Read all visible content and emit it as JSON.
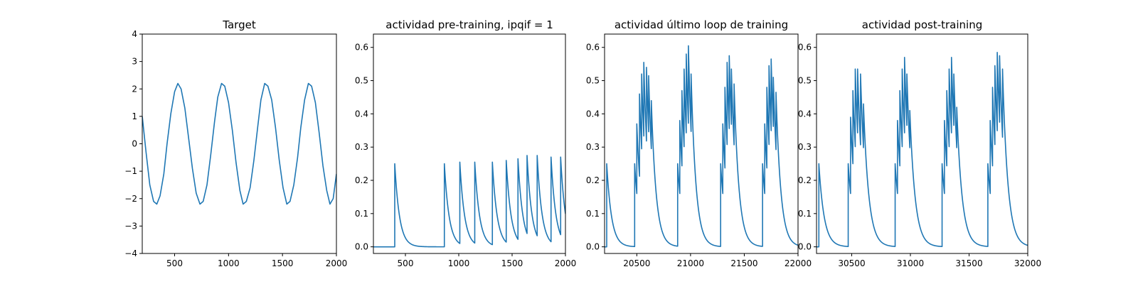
{
  "colors": {
    "line": "#1f77b4",
    "axes": "#000000",
    "background": "#ffffff"
  },
  "chart_data": [
    {
      "type": "line",
      "title": "Target",
      "xlim": [
        200,
        2000
      ],
      "ylim": [
        -4,
        4
      ],
      "xticks": [
        500,
        1000,
        1500,
        2000
      ],
      "yticks": [
        -4,
        -3,
        -2,
        -1,
        0,
        1,
        2,
        3,
        4
      ],
      "xticklabels": [
        "500",
        "1000",
        "1500",
        "2000"
      ],
      "yticklabels": [
        "−4",
        "−3",
        "−2",
        "−1",
        "0",
        "1",
        "2",
        "3",
        "4"
      ],
      "series": [
        {
          "points": [
            [
              200,
              1.0
            ],
            [
              235,
              -0.3
            ],
            [
              270,
              -1.5
            ],
            [
              305,
              -2.1
            ],
            [
              335,
              -2.2
            ],
            [
              365,
              -1.9
            ],
            [
              400,
              -1.1
            ],
            [
              430,
              0.0
            ],
            [
              465,
              1.1
            ],
            [
              500,
              1.9
            ],
            [
              530,
              2.2
            ],
            [
              560,
              2.0
            ],
            [
              595,
              1.3
            ],
            [
              630,
              0.2
            ],
            [
              665,
              -0.9
            ],
            [
              700,
              -1.8
            ],
            [
              735,
              -2.2
            ],
            [
              765,
              -2.1
            ],
            [
              800,
              -1.5
            ],
            [
              835,
              -0.4
            ],
            [
              870,
              0.8
            ],
            [
              900,
              1.7
            ],
            [
              935,
              2.2
            ],
            [
              965,
              2.1
            ],
            [
              1000,
              1.5
            ],
            [
              1035,
              0.5
            ],
            [
              1070,
              -0.7
            ],
            [
              1105,
              -1.7
            ],
            [
              1135,
              -2.2
            ],
            [
              1165,
              -2.1
            ],
            [
              1200,
              -1.6
            ],
            [
              1235,
              -0.6
            ],
            [
              1270,
              0.6
            ],
            [
              1300,
              1.6
            ],
            [
              1335,
              2.2
            ],
            [
              1365,
              2.1
            ],
            [
              1400,
              1.6
            ],
            [
              1435,
              0.6
            ],
            [
              1470,
              -0.6
            ],
            [
              1505,
              -1.6
            ],
            [
              1540,
              -2.2
            ],
            [
              1570,
              -2.1
            ],
            [
              1605,
              -1.5
            ],
            [
              1640,
              -0.5
            ],
            [
              1670,
              0.6
            ],
            [
              1705,
              1.6
            ],
            [
              1740,
              2.2
            ],
            [
              1770,
              2.1
            ],
            [
              1805,
              1.5
            ],
            [
              1840,
              0.4
            ],
            [
              1875,
              -0.8
            ],
            [
              1910,
              -1.7
            ],
            [
              1940,
              -2.2
            ],
            [
              1970,
              -2.0
            ],
            [
              2000,
              -1.1
            ]
          ]
        }
      ]
    },
    {
      "type": "line",
      "title": "actividad pre-training, ipqif = 1",
      "xlim": [
        200,
        2000
      ],
      "ylim": [
        -0.02,
        0.64
      ],
      "xticks": [
        500,
        1000,
        1500,
        2000
      ],
      "yticks": [
        0.0,
        0.1,
        0.2,
        0.3,
        0.4,
        0.5,
        0.6
      ],
      "xticklabels": [
        "500",
        "1000",
        "1500",
        "2000"
      ],
      "yticklabels": [
        "0.0",
        "0.1",
        "0.2",
        "0.3",
        "0.4",
        "0.5",
        "0.6"
      ],
      "decay_tau": 45,
      "series": [
        {
          "t0": 200,
          "t_end": 2000,
          "spikes": [
            [
              400,
              0.25
            ],
            [
              865,
              0.25
            ],
            [
              1010,
              0.255
            ],
            [
              1150,
              0.255
            ],
            [
              1315,
              0.255
            ],
            [
              1445,
              0.26
            ],
            [
              1555,
              0.265
            ],
            [
              1640,
              0.275
            ],
            [
              1735,
              0.275
            ],
            [
              1865,
              0.27
            ],
            [
              1955,
              0.27
            ]
          ]
        }
      ]
    },
    {
      "type": "line",
      "title": "actividad último loop de training",
      "xlim": [
        20200,
        22000
      ],
      "ylim": [
        -0.02,
        0.64
      ],
      "xticks": [
        20500,
        21000,
        21500,
        22000
      ],
      "yticks": [
        0.0,
        0.1,
        0.2,
        0.3,
        0.4,
        0.5,
        0.6
      ],
      "xticklabels": [
        "20500",
        "21000",
        "21500",
        "22000"
      ],
      "yticklabels": [
        "0.0",
        "0.1",
        "0.2",
        "0.3",
        "0.4",
        "0.5",
        "0.6"
      ],
      "decay_tau": 45,
      "series": [
        {
          "t0": 20200,
          "t_end": 22000,
          "spikes": [
            [
              20220,
              0.25
            ],
            [
              20480,
              0.25
            ],
            [
              20500,
              0.37
            ],
            [
              20525,
              0.46
            ],
            [
              20545,
              0.52
            ],
            [
              20565,
              0.555
            ],
            [
              20590,
              0.54
            ],
            [
              20610,
              0.515
            ],
            [
              20635,
              0.44
            ],
            [
              20880,
              0.25
            ],
            [
              20900,
              0.38
            ],
            [
              20920,
              0.47
            ],
            [
              20940,
              0.535
            ],
            [
              20960,
              0.58
            ],
            [
              20980,
              0.605
            ],
            [
              21005,
              0.52
            ],
            [
              21280,
              0.25
            ],
            [
              21300,
              0.37
            ],
            [
              21320,
              0.48
            ],
            [
              21340,
              0.555
            ],
            [
              21360,
              0.575
            ],
            [
              21380,
              0.535
            ],
            [
              21405,
              0.49
            ],
            [
              21670,
              0.25
            ],
            [
              21690,
              0.37
            ],
            [
              21710,
              0.48
            ],
            [
              21730,
              0.545
            ],
            [
              21750,
              0.565
            ],
            [
              21770,
              0.51
            ],
            [
              21795,
              0.465
            ]
          ]
        }
      ]
    },
    {
      "type": "line",
      "title": "actividad post-training",
      "xlim": [
        30200,
        32000
      ],
      "ylim": [
        -0.02,
        0.64
      ],
      "xticks": [
        30500,
        31000,
        31500,
        32000
      ],
      "yticks": [
        0.0,
        0.1,
        0.2,
        0.3,
        0.4,
        0.5,
        0.6
      ],
      "xticklabels": [
        "30500",
        "31000",
        "31500",
        "32000"
      ],
      "yticklabels": [
        "0.0",
        "0.1",
        "0.2",
        "0.3",
        "0.4",
        "0.5",
        "0.6"
      ],
      "decay_tau": 45,
      "series": [
        {
          "t0": 30200,
          "t_end": 32000,
          "spikes": [
            [
              30220,
              0.25
            ],
            [
              30470,
              0.25
            ],
            [
              30490,
              0.39
            ],
            [
              30510,
              0.47
            ],
            [
              30530,
              0.535
            ],
            [
              30550,
              0.535
            ],
            [
              30575,
              0.52
            ],
            [
              30600,
              0.43
            ],
            [
              30870,
              0.25
            ],
            [
              30890,
              0.38
            ],
            [
              30910,
              0.47
            ],
            [
              30930,
              0.535
            ],
            [
              30950,
              0.57
            ],
            [
              30970,
              0.52
            ],
            [
              30995,
              0.41
            ],
            [
              31270,
              0.25
            ],
            [
              31290,
              0.38
            ],
            [
              31310,
              0.47
            ],
            [
              31330,
              0.535
            ],
            [
              31350,
              0.57
            ],
            [
              31370,
              0.52
            ],
            [
              31395,
              0.42
            ],
            [
              31660,
              0.25
            ],
            [
              31680,
              0.38
            ],
            [
              31700,
              0.48
            ],
            [
              31720,
              0.545
            ],
            [
              31740,
              0.585
            ],
            [
              31760,
              0.575
            ],
            [
              31785,
              0.535
            ]
          ]
        }
      ]
    }
  ]
}
